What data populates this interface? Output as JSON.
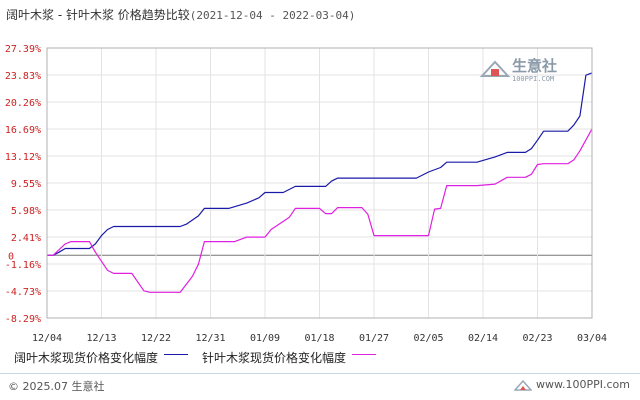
{
  "title": {
    "main": "阔叶木浆 - 针叶木浆 价格趋势比较",
    "range": "(2021-12-04 - 2022-03-04)"
  },
  "watermark": {
    "text": "生意社",
    "sub": "100PPI.COM"
  },
  "footer": {
    "left": "© 2025.07 生意社",
    "right": "www.100PPI.com"
  },
  "colors": {
    "series1": "#1a1aa8",
    "series2": "#e020e0",
    "ytick": "#cc2222",
    "grid": "#e3e3e3",
    "zero": "#777777"
  },
  "chart_data": {
    "type": "line",
    "title": "阔叶木浆 - 针叶木浆 价格趋势比较",
    "xlabel": "",
    "ylabel": "",
    "grid": true,
    "legend_placement": "bottom",
    "x_start": "2021-12-04",
    "x_end": "2022-03-04",
    "ylim": [
      -8.29,
      27.39
    ],
    "y_ticks": [
      "27.39%",
      "23.83%",
      "20.26%",
      "16.69%",
      "13.12%",
      "9.55%",
      "5.98%",
      "2.41%",
      "-1.16%",
      "-4.73%",
      "-8.29%"
    ],
    "y_tick_values": [
      27.39,
      23.83,
      20.26,
      16.69,
      13.12,
      9.55,
      5.98,
      2.41,
      -1.16,
      -4.73,
      -8.29
    ],
    "x_ticks": [
      {
        "date": "2021-12-04",
        "label": "12/04"
      },
      {
        "date": "2021-12-13",
        "label": "12/13"
      },
      {
        "date": "2021-12-22",
        "label": "12/22"
      },
      {
        "date": "2021-12-31",
        "label": "12/31"
      },
      {
        "date": "2022-01-09",
        "label": "01/09"
      },
      {
        "date": "2022-01-18",
        "label": "01/18"
      },
      {
        "date": "2022-01-27",
        "label": "01/27"
      },
      {
        "date": "2022-02-05",
        "label": "02/05"
      },
      {
        "date": "2022-02-14",
        "label": "02/14"
      },
      {
        "date": "2022-02-23",
        "label": "02/23"
      },
      {
        "date": "2022-03-04",
        "label": "03/04"
      }
    ],
    "series": [
      {
        "name": "阔叶木浆现货价格变化幅度",
        "points": [
          [
            "2021-12-04",
            0
          ],
          [
            "2021-12-05",
            0
          ],
          [
            "2021-12-06",
            0.4
          ],
          [
            "2021-12-07",
            0.9
          ],
          [
            "2021-12-10",
            0.9
          ],
          [
            "2021-12-11",
            0.9
          ],
          [
            "2021-12-12",
            1.5
          ],
          [
            "2021-12-13",
            2.6
          ],
          [
            "2021-12-14",
            3.4
          ],
          [
            "2021-12-15",
            3.8
          ],
          [
            "2021-12-26",
            3.8
          ],
          [
            "2021-12-27",
            4.1
          ],
          [
            "2021-12-29",
            5.2
          ],
          [
            "2021-12-30",
            6.2
          ],
          [
            "2022-01-03",
            6.2
          ],
          [
            "2022-01-06",
            6.9
          ],
          [
            "2022-01-08",
            7.6
          ],
          [
            "2022-01-09",
            8.3
          ],
          [
            "2022-01-12",
            8.3
          ],
          [
            "2022-01-14",
            9.1
          ],
          [
            "2022-01-19",
            9.1
          ],
          [
            "2022-01-20",
            9.8
          ],
          [
            "2022-01-21",
            10.2
          ],
          [
            "2022-02-03",
            10.2
          ],
          [
            "2022-02-04",
            10.6
          ],
          [
            "2022-02-05",
            11.0
          ],
          [
            "2022-02-07",
            11.6
          ],
          [
            "2022-02-08",
            12.3
          ],
          [
            "2022-02-13",
            12.3
          ],
          [
            "2022-02-16",
            13.0
          ],
          [
            "2022-02-18",
            13.6
          ],
          [
            "2022-02-21",
            13.6
          ],
          [
            "2022-02-22",
            14.1
          ],
          [
            "2022-02-23",
            15.2
          ],
          [
            "2022-02-24",
            16.4
          ],
          [
            "2022-02-28",
            16.4
          ],
          [
            "2022-03-01",
            17.2
          ],
          [
            "2022-03-02",
            18.4
          ],
          [
            "2022-03-03",
            23.8
          ],
          [
            "2022-03-04",
            24.1
          ]
        ]
      },
      {
        "name": "针叶木浆现货价格变化幅度",
        "points": [
          [
            "2021-12-04",
            0
          ],
          [
            "2021-12-05",
            0
          ],
          [
            "2021-12-07",
            1.5
          ],
          [
            "2021-12-08",
            1.8
          ],
          [
            "2021-12-11",
            1.8
          ],
          [
            "2021-12-12",
            0.4
          ],
          [
            "2021-12-14",
            -2.0
          ],
          [
            "2021-12-15",
            -2.4
          ],
          [
            "2021-12-18",
            -2.4
          ],
          [
            "2021-12-20",
            -4.7
          ],
          [
            "2021-12-21",
            -4.9
          ],
          [
            "2021-12-26",
            -4.9
          ],
          [
            "2021-12-28",
            -2.8
          ],
          [
            "2021-12-29",
            -1.2
          ],
          [
            "2021-12-30",
            1.8
          ],
          [
            "2022-01-04",
            1.8
          ],
          [
            "2022-01-06",
            2.4
          ],
          [
            "2022-01-09",
            2.4
          ],
          [
            "2022-01-10",
            3.4
          ],
          [
            "2022-01-13",
            5.0
          ],
          [
            "2022-01-14",
            6.2
          ],
          [
            "2022-01-18",
            6.2
          ],
          [
            "2022-01-19",
            5.5
          ],
          [
            "2022-01-20",
            5.5
          ],
          [
            "2022-01-21",
            6.3
          ],
          [
            "2022-01-25",
            6.3
          ],
          [
            "2022-01-26",
            5.4
          ],
          [
            "2022-01-27",
            2.6
          ],
          [
            "2022-02-05",
            2.6
          ],
          [
            "2022-02-06",
            6.1
          ],
          [
            "2022-02-07",
            6.2
          ],
          [
            "2022-02-08",
            9.2
          ],
          [
            "2022-02-13",
            9.2
          ],
          [
            "2022-02-16",
            9.4
          ],
          [
            "2022-02-18",
            10.3
          ],
          [
            "2022-02-21",
            10.3
          ],
          [
            "2022-02-22",
            10.7
          ],
          [
            "2022-02-23",
            12.0
          ],
          [
            "2022-02-24",
            12.1
          ],
          [
            "2022-02-28",
            12.1
          ],
          [
            "2022-03-01",
            12.6
          ],
          [
            "2022-03-02",
            13.8
          ],
          [
            "2022-03-04",
            16.7
          ]
        ]
      }
    ]
  }
}
